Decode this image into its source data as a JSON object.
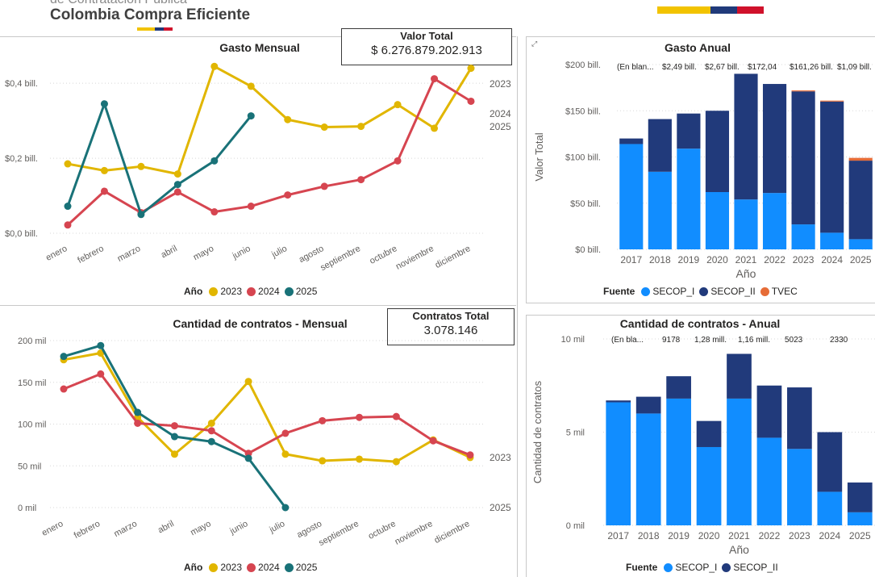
{
  "header": {
    "partial_text": "de Contratación Pública",
    "title": "Colombia Compra Eficiente",
    "flag_colors": [
      "#f2c300",
      "#203a7a",
      "#d0112b"
    ]
  },
  "colors": {
    "y2023": "#e1b600",
    "y2024": "#d64550",
    "y2025": "#197278",
    "secop_i": "#118dff",
    "secop_ii": "#213a7b",
    "tvec": "#e66c37"
  },
  "kpis": {
    "valor_total": {
      "label": "Valor Total",
      "value": "$ 6.276.879.202.913"
    },
    "contratos_total": {
      "label": "Contratos Total",
      "value": "3.078.146"
    }
  },
  "focus_icon": "expand-icon",
  "panels": {
    "gasto_mensual": {
      "title": "Gasto Mensual"
    },
    "gasto_anual": {
      "title": "Gasto Anual"
    },
    "cantidad_mensual": {
      "title": "Cantidad de contratos - Mensual"
    },
    "cantidad_anual": {
      "title": "Cantidad de contratos - Anual"
    }
  },
  "legends": {
    "anio": {
      "title": "Año",
      "items": [
        {
          "label": "2023",
          "color": "#e1b600"
        },
        {
          "label": "2024",
          "color": "#d64550"
        },
        {
          "label": "2025",
          "color": "#197278"
        }
      ]
    },
    "fuente_gasto": {
      "title": "Fuente",
      "items": [
        {
          "label": "SECOP_I",
          "color": "#118dff"
        },
        {
          "label": "SECOP_II",
          "color": "#213a7b"
        },
        {
          "label": "TVEC",
          "color": "#e66c37"
        }
      ]
    },
    "fuente_cantidad": {
      "title": "Fuente",
      "items": [
        {
          "label": "SECOP_I",
          "color": "#118dff"
        },
        {
          "label": "SECOP_II",
          "color": "#213a7b"
        }
      ]
    }
  },
  "chart_data": [
    {
      "id": "gasto_mensual",
      "type": "line",
      "title": "Gasto Mensual",
      "categories": [
        "enero",
        "febrero",
        "marzo",
        "abril",
        "mayo",
        "junio",
        "julio",
        "agosto",
        "septiembre",
        "octubre",
        "noviembre",
        "diciembre"
      ],
      "ytick_labels": [
        "$0,0 bill.",
        "$0,2 bill.",
        "$0,4 bill."
      ],
      "yticks": [
        0,
        0.2,
        0.4
      ],
      "ylim": [
        0,
        0.48
      ],
      "grid": true,
      "legend": "bottom",
      "end_labels": [
        "2023",
        "2024",
        "2025"
      ],
      "series": [
        {
          "name": "2023",
          "values": [
            0.185,
            0.167,
            0.178,
            0.158,
            0.445,
            0.392,
            0.303,
            0.283,
            0.285,
            0.343,
            0.28,
            0.44
          ]
        },
        {
          "name": "2024",
          "values": [
            0.022,
            0.112,
            0.055,
            0.11,
            0.057,
            0.072,
            0.102,
            0.125,
            0.143,
            0.193,
            0.412,
            0.352
          ]
        },
        {
          "name": "2025",
          "values": [
            0.072,
            0.345,
            0.05,
            0.13,
            0.193,
            0.313,
            null,
            null,
            null,
            null,
            null,
            null
          ]
        }
      ]
    },
    {
      "id": "gasto_anual",
      "type": "bar",
      "stacked": true,
      "title": "Gasto Anual",
      "xlabel": "Año",
      "ylabel": "Valor Total",
      "categories": [
        "2017",
        "2018",
        "2019",
        "2020",
        "2021",
        "2022",
        "2023",
        "2024",
        "2025"
      ],
      "ytick_labels": [
        "$0 bill.",
        "$50 bill.",
        "$100 bill.",
        "$150 bill.",
        "$200 bill."
      ],
      "yticks": [
        0,
        50,
        100,
        150,
        200
      ],
      "ylim": [
        0,
        200
      ],
      "legend": "bottom",
      "top_labels": [
        "(En blan...",
        "$2,49 bill.",
        "$2,67 bill.",
        "$172,04",
        "$161,26 bill.",
        "$1,09 bill."
      ],
      "series": [
        {
          "name": "SECOP_I",
          "values": [
            114,
            84,
            109,
            62,
            54,
            61,
            27,
            18,
            11
          ]
        },
        {
          "name": "SECOP_II",
          "values": [
            6,
            57,
            38,
            88,
            136,
            118,
            144,
            142,
            85
          ]
        },
        {
          "name": "TVEC",
          "values": [
            0,
            0,
            0,
            0,
            0,
            0,
            1,
            1,
            3
          ]
        }
      ]
    },
    {
      "id": "cantidad_mensual",
      "type": "line",
      "title": "Cantidad de contratos - Mensual",
      "categories": [
        "enero",
        "febrero",
        "marzo",
        "abril",
        "mayo",
        "junio",
        "julio",
        "agosto",
        "septiembre",
        "octubre",
        "noviembre",
        "diciembre"
      ],
      "ytick_labels": [
        "0 mil",
        "50 mil",
        "100 mil",
        "150 mil",
        "200 mil"
      ],
      "yticks": [
        0,
        50,
        100,
        150,
        200
      ],
      "ylim": [
        0,
        200
      ],
      "grid": true,
      "legend": "bottom",
      "end_labels": [
        "2023",
        "2025"
      ],
      "series": [
        {
          "name": "2023",
          "values": [
            177,
            185,
            108,
            64,
            101,
            151,
            64,
            56,
            58,
            55,
            81,
            60
          ]
        },
        {
          "name": "2024",
          "values": [
            142,
            160,
            101,
            98,
            92,
            65,
            89,
            104,
            108,
            109,
            80,
            63
          ]
        },
        {
          "name": "2025",
          "values": [
            181,
            194,
            114,
            85,
            79,
            59,
            0,
            null,
            null,
            null,
            null,
            null
          ]
        }
      ]
    },
    {
      "id": "cantidad_anual",
      "type": "bar",
      "stacked": true,
      "title": "Cantidad de contratos - Anual",
      "xlabel": "Año",
      "ylabel": "Cantidad de contratos",
      "categories": [
        "2017",
        "2018",
        "2019",
        "2020",
        "2021",
        "2022",
        "2023",
        "2024",
        "2025"
      ],
      "ytick_labels": [
        "0 mil",
        "5 mil",
        "10 mil"
      ],
      "yticks": [
        0,
        5,
        10
      ],
      "ylim": [
        0,
        10
      ],
      "legend": "bottom",
      "top_labels": [
        "(En bla...",
        "9178",
        "1,28 mill.",
        "1,16 mill.",
        "5023",
        "2330"
      ],
      "series": [
        {
          "name": "SECOP_I",
          "values": [
            6.6,
            6.0,
            6.8,
            4.2,
            6.8,
            4.7,
            4.1,
            1.8,
            0.7
          ]
        },
        {
          "name": "SECOP_II",
          "values": [
            0.1,
            0.9,
            1.2,
            1.4,
            2.4,
            2.8,
            3.3,
            3.2,
            1.6
          ]
        }
      ]
    }
  ]
}
